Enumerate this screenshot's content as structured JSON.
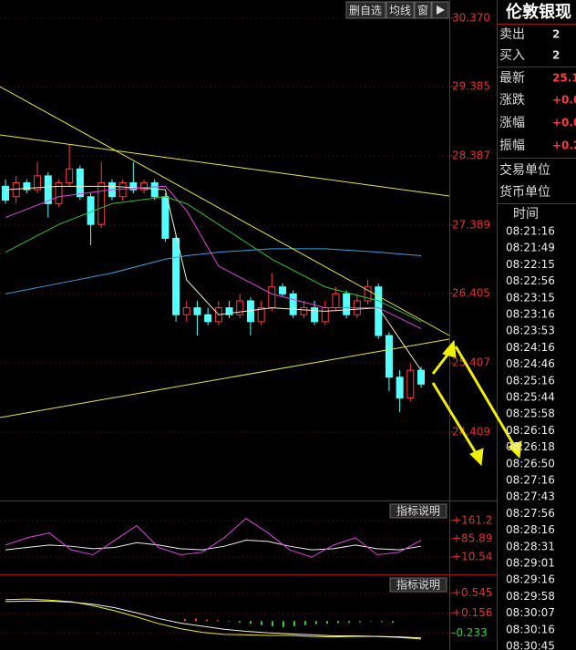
{
  "toolbar": {
    "buttons": [
      "删自选",
      "均线",
      "窗"
    ]
  },
  "chart_data": [
    {
      "type": "candlestick",
      "open": [
        27.95,
        27.8,
        28.0,
        27.9,
        28.1,
        27.7,
        28.0,
        28.2,
        27.8,
        27.4,
        28.0,
        27.8,
        28.0,
        27.9,
        28.0,
        27.8,
        27.2,
        26.1,
        26.2,
        26.1,
        26.0,
        26.2,
        26.1,
        26.3,
        26.0,
        26.2,
        26.5,
        26.4,
        26.1,
        26.2,
        26.0,
        26.2,
        26.4,
        26.1,
        26.3,
        26.5,
        25.8,
        25.2,
        24.9,
        25.3
      ],
      "high": [
        28.05,
        28.1,
        28.05,
        28.3,
        28.15,
        28.05,
        28.55,
        28.25,
        27.85,
        28.3,
        28.05,
        28.05,
        28.3,
        28.05,
        28.05,
        27.85,
        27.25,
        26.3,
        26.3,
        26.2,
        26.3,
        26.3,
        26.4,
        26.35,
        26.3,
        26.7,
        26.55,
        26.45,
        26.3,
        26.3,
        26.3,
        26.5,
        26.45,
        26.4,
        26.6,
        26.55,
        25.85,
        25.3,
        25.4,
        25.35
      ],
      "low": [
        27.7,
        27.7,
        27.85,
        27.85,
        27.5,
        27.65,
        27.95,
        27.75,
        27.1,
        27.35,
        27.75,
        27.75,
        27.85,
        27.85,
        27.75,
        27.15,
        26.0,
        26.0,
        25.8,
        25.95,
        25.95,
        26.05,
        26.05,
        25.8,
        25.95,
        26.15,
        26.35,
        26.05,
        26.05,
        25.95,
        25.95,
        26.15,
        26.05,
        26.05,
        26.25,
        25.75,
        25.0,
        24.7,
        24.85,
        25.05
      ],
      "close": [
        27.75,
        28.0,
        27.9,
        28.1,
        27.7,
        28.0,
        28.2,
        27.8,
        27.4,
        28.0,
        27.8,
        28.0,
        27.9,
        28.0,
        27.8,
        27.2,
        26.1,
        26.2,
        26.1,
        26.0,
        26.2,
        26.1,
        26.3,
        26.0,
        26.2,
        26.5,
        26.4,
        26.1,
        26.2,
        26.0,
        26.2,
        26.4,
        26.1,
        26.3,
        26.5,
        25.8,
        25.2,
        24.9,
        25.3,
        25.1
      ],
      "up_color": "#ff3c3c",
      "down_color": "#54ffff",
      "ylim": [
        23.437,
        30.633
      ],
      "yticks": [
        {
          "value": 30.37,
          "label": "30.370"
        },
        29.385,
        28.387,
        27.389,
        26.405,
        25.407,
        24.409
      ]
    },
    {
      "type": "line",
      "x": [
        0,
        5,
        10,
        15,
        17,
        20,
        25,
        30,
        35,
        39
      ],
      "series": [
        {
          "color": "#f0f0c8",
          "values": [
            27.9,
            27.95,
            27.95,
            27.9,
            26.6,
            26.1,
            26.2,
            26.15,
            26.2,
            25.3
          ]
        },
        {
          "color": "#e040e0",
          "values": [
            27.5,
            27.8,
            27.9,
            27.95,
            27.6,
            26.8,
            26.4,
            26.2,
            26.2,
            25.9
          ]
        },
        {
          "color": "#30c030",
          "values": [
            27.0,
            27.4,
            27.7,
            27.8,
            27.7,
            27.4,
            26.9,
            26.5,
            26.3,
            26.0
          ]
        },
        {
          "color": "#3aa0e0",
          "values": [
            26.4,
            26.55,
            26.7,
            26.9,
            26.95,
            27.0,
            27.05,
            27.05,
            27.0,
            26.95
          ]
        }
      ],
      "ylim": [
        23.437,
        30.633
      ]
    },
    {
      "type": "line",
      "series": [
        {
          "color": "#f0f0f0",
          "values": [
            40,
            50,
            60,
            55,
            45,
            50,
            70,
            60,
            45,
            40,
            55,
            80,
            75,
            55,
            40,
            45,
            60,
            45,
            40,
            55
          ]
        },
        {
          "color": "#e040e0",
          "values": [
            60,
            90,
            110,
            40,
            20,
            80,
            140,
            50,
            20,
            30,
            90,
            170,
            110,
            40,
            10,
            60,
            90,
            20,
            30,
            80
          ]
        }
      ],
      "ylim": [
        -53.5,
        221.4
      ],
      "yticks": [
        {
          "value": 161.2,
          "label": "+161.2"
        },
        {
          "value": 85.89,
          "label": "+85.89"
        },
        {
          "value": 10.54,
          "label": "+10.54"
        }
      ]
    },
    {
      "type": "macd",
      "bars": [
        0.04,
        0.05,
        0.03,
        0.02,
        -0.01,
        -0.03,
        -0.05,
        -0.08,
        -0.1,
        -0.12,
        -0.1,
        -0.08,
        -0.06,
        -0.05,
        -0.04,
        -0.03,
        -0.02,
        -0.01,
        -0.02,
        -0.03
      ],
      "up_color": "#ff3c3c",
      "down_color": "#30d030",
      "series": [
        {
          "color": "#f0f000",
          "values": [
            0.42,
            0.43,
            0.41,
            0.38,
            0.3,
            0.2,
            0.08,
            -0.05,
            -0.15,
            -0.22,
            -0.26,
            -0.27,
            -0.28,
            -0.28,
            -0.3,
            -0.31,
            -0.3,
            -0.3,
            -0.32,
            -0.35
          ]
        },
        {
          "color": "#f0f0f0",
          "values": [
            0.38,
            0.39,
            0.39,
            0.37,
            0.33,
            0.26,
            0.16,
            0.05,
            -0.04,
            -0.1,
            -0.16,
            -0.2,
            -0.23,
            -0.25,
            -0.27,
            -0.29,
            -0.29,
            -0.3,
            -0.31,
            -0.33
          ]
        }
      ],
      "ylim": [
        -0.566,
        0.878
      ],
      "yticks": [
        {
          "value": 0.545,
          "label": "+0.545"
        },
        {
          "value": 0.156,
          "label": "+0.156"
        },
        {
          "value": -0.233,
          "label": "-0.233"
        }
      ]
    }
  ],
  "indicator_buttons": [
    "指标说明",
    "指标说明"
  ],
  "quote_panel": {
    "title": "伦敦银现",
    "rows": [
      {
        "label": "卖出",
        "value": "2"
      },
      {
        "label": "买入",
        "value": "2"
      },
      {
        "label": "最新",
        "value": "25.1"
      },
      {
        "label": "涨跌",
        "value": "+0.0"
      },
      {
        "label": "涨幅",
        "value": "+0.0"
      },
      {
        "label": "振幅",
        "value": "+0.2"
      }
    ],
    "units": [
      "交易单位",
      "货币单位"
    ],
    "time_header": "时间",
    "times": [
      "08:21:16",
      "08:21:49",
      "08:22:15",
      "08:22:56",
      "08:23:15",
      "08:23:16",
      "08:23:53",
      "08:24:16",
      "08:24:46",
      "08:25:16",
      "08:25:44",
      "08:25:58",
      "08:26:16",
      "08:26:18",
      "08:26:50",
      "08:27:16",
      "08:27:43",
      "08:27:56",
      "08:28:16",
      "08:28:31",
      "08:29:01",
      "08:29:16",
      "08:29:58",
      "08:30:07",
      "08:30:16",
      "08:30:45"
    ]
  }
}
